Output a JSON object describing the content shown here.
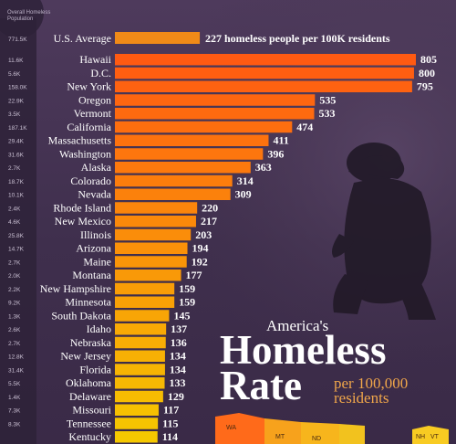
{
  "header": {
    "column_title_line1": "Overall Homeless",
    "column_title_line2": "Population"
  },
  "title": {
    "line1": "America's",
    "line2": "Homeless",
    "line3": "Rate",
    "unit_line1": "per 100,000",
    "unit_line2": "residents"
  },
  "average": {
    "label": "U.S. Average",
    "population": "771.5K",
    "value": 227,
    "text": "227 homeless people per 100K residents"
  },
  "map_labels": [
    "WA",
    "MT",
    "ND",
    "NH",
    "VT"
  ],
  "colors": {
    "bar_top": "#ff5a12",
    "bar_bottom": "#f5c800",
    "average_bar": "#f08a18",
    "background": "#45344f"
  },
  "chart_data": {
    "type": "bar",
    "orientation": "horizontal",
    "categories": [
      "Hawaii",
      "D.C.",
      "New York",
      "Oregon",
      "Vermont",
      "California",
      "Massachusetts",
      "Washington",
      "Alaska",
      "Colorado",
      "Nevada",
      "Rhode Island",
      "New Mexico",
      "Illinois",
      "Arizona",
      "Maine",
      "Montana",
      "New Hampshire",
      "Minnesota",
      "South Dakota",
      "Idaho",
      "Nebraska",
      "New Jersey",
      "Florida",
      "Oklahoma",
      "Delaware",
      "Missouri",
      "Tennessee",
      "Kentucky"
    ],
    "populations": [
      "11.6K",
      "5.6K",
      "158.0K",
      "22.9K",
      "3.5K",
      "187.1K",
      "29.4K",
      "31.6K",
      "2.7K",
      "18.7K",
      "10.1K",
      "2.4K",
      "4.6K",
      "25.8K",
      "14.7K",
      "2.7K",
      "2.0K",
      "2.2K",
      "9.2K",
      "1.3K",
      "2.6K",
      "2.7K",
      "12.8K",
      "31.4K",
      "5.5K",
      "1.4K",
      "7.3K",
      "8.3K",
      ""
    ],
    "values": [
      805,
      800,
      795,
      535,
      533,
      474,
      411,
      396,
      363,
      314,
      309,
      220,
      217,
      203,
      194,
      192,
      177,
      159,
      159,
      145,
      137,
      136,
      134,
      134,
      133,
      129,
      117,
      115,
      114
    ],
    "value_labels": [
      "805",
      "800",
      "795",
      "535",
      "533",
      "474",
      "411",
      "396",
      "363",
      "314",
      "309",
      "220",
      "217",
      "203",
      "194",
      "192",
      "177",
      "159",
      "159",
      "145",
      "137",
      "136",
      "134",
      "134",
      "133",
      "129",
      "117",
      "115",
      "114"
    ],
    "xlim": [
      0,
      805
    ]
  }
}
